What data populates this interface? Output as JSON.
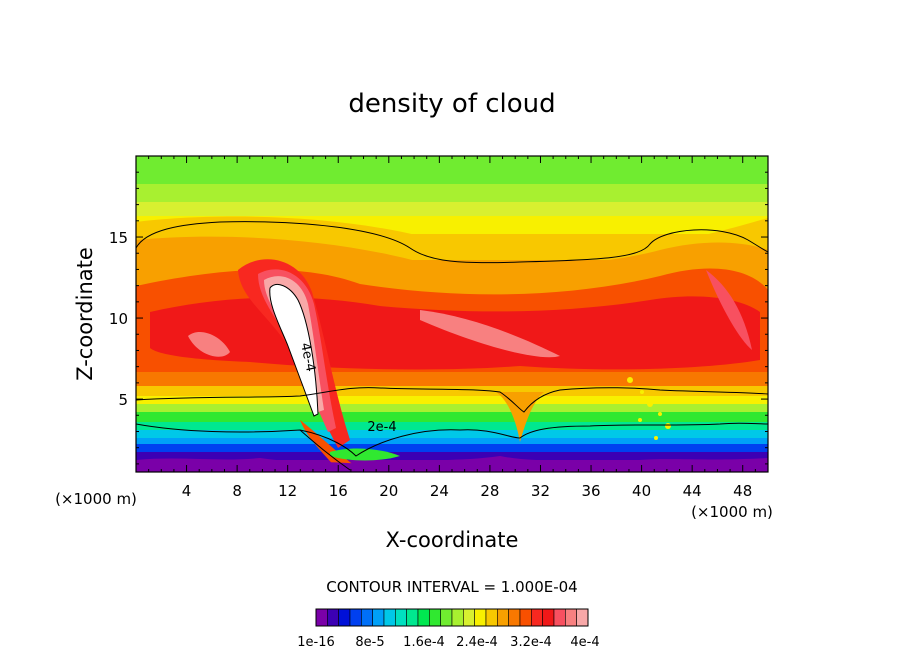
{
  "chart_data": {
    "type": "heatmap",
    "title": "density of cloud",
    "xlabel": "X-coordinate",
    "ylabel": "Z-coordinate",
    "x_unit_left": "(×1000 m)",
    "x_unit_right": "(×1000 m)",
    "xlim": [
      0,
      50
    ],
    "ylim": [
      0.5,
      20
    ],
    "x_ticks": [
      "4",
      "8",
      "12",
      "16",
      "20",
      "24",
      "28",
      "32",
      "36",
      "40",
      "44",
      "48"
    ],
    "x_tick_values": [
      4,
      8,
      12,
      16,
      20,
      24,
      28,
      32,
      36,
      40,
      44,
      48
    ],
    "y_ticks": [
      "5",
      "10",
      "15"
    ],
    "y_tick_values": [
      5,
      10,
      15
    ],
    "contour_interval_text": "CONTOUR INTERVAL = 1.000E-04",
    "contour_labels": [
      "4e-4",
      "2e-4"
    ],
    "colorbar_labels": [
      "1e-16",
      "8e-5",
      "1.6e-4",
      "2.4e-4",
      "3.2e-4",
      "4e-4"
    ],
    "colorbar_colors": [
      "#7a00a8",
      "#3c00b4",
      "#0010d8",
      "#0040f0",
      "#0070f8",
      "#00a0f8",
      "#00c8e8",
      "#00e0c0",
      "#00e890",
      "#00e850",
      "#30e830",
      "#70ec30",
      "#a8f030",
      "#d8f030",
      "#f8f000",
      "#f8c800",
      "#f8a000",
      "#f87800",
      "#f85000",
      "#f82820",
      "#f01818",
      "#f85060",
      "#f88080",
      "#f8a8a8"
    ],
    "levels_min": 1e-16,
    "levels_max": 0.0004,
    "level_step": 0.0001
  }
}
